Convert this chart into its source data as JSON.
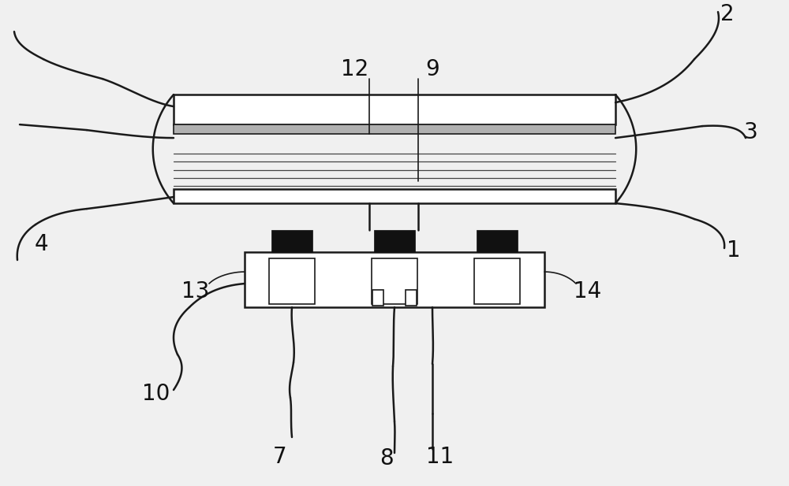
{
  "bg_color": "#f0f0f0",
  "line_color": "#1a1a1a",
  "dark_color": "#111111",
  "white": "#ffffff",
  "fig_width": 10.0,
  "fig_height": 6.17,
  "dpi": 100
}
